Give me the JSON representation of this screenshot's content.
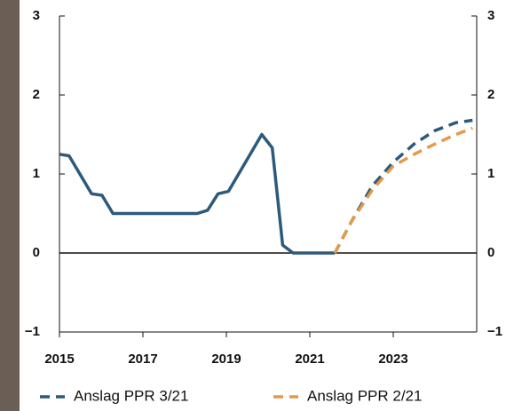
{
  "chart_data": {
    "type": "line",
    "series": [
      {
        "color": "#2d5a7b",
        "dash": false,
        "x": [
          2015.0,
          2015.23,
          2015.77,
          2016.02,
          2016.28,
          2018.3,
          2018.55,
          2018.8,
          2019.05,
          2019.85,
          2020.1,
          2020.35,
          2020.6,
          2021.6
        ],
        "values": [
          1.25,
          1.23,
          0.75,
          0.73,
          0.5,
          0.5,
          0.54,
          0.75,
          0.78,
          1.5,
          1.33,
          0.1,
          0.0,
          0.0
        ]
      },
      {
        "name": "Anslag PPR 3/21",
        "color": "#2d5a7b",
        "dash": true,
        "x": [
          2021.6,
          2022.0,
          2022.5,
          2023.0,
          2023.5,
          2024.0,
          2024.5,
          2024.9
        ],
        "values": [
          0.0,
          0.4,
          0.85,
          1.15,
          1.38,
          1.55,
          1.65,
          1.68
        ]
      },
      {
        "name": "Anslag PPR 2/21",
        "color": "#e39b4a",
        "dash": true,
        "x": [
          2021.6,
          2022.0,
          2022.5,
          2023.0,
          2023.5,
          2024.0,
          2024.5,
          2024.9
        ],
        "values": [
          0.0,
          0.4,
          0.8,
          1.1,
          1.25,
          1.38,
          1.5,
          1.58
        ]
      }
    ],
    "xlim": [
      2015,
      2025
    ],
    "xticks": [
      2015,
      2017,
      2019,
      2021,
      2023
    ],
    "ylim": [
      -1,
      3
    ],
    "yticks": [
      {
        "value": -1,
        "label": "−1"
      },
      0,
      1,
      2,
      3
    ],
    "y2lim": [
      -1,
      3
    ],
    "y2ticks": [
      {
        "value": -1,
        "label": "−1"
      },
      0,
      1,
      2,
      3
    ],
    "legend": "bottom"
  }
}
